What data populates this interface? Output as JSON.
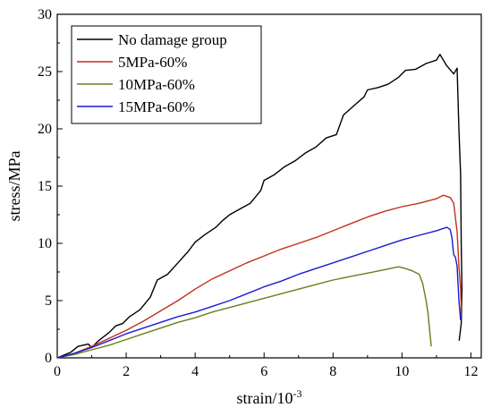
{
  "chart_data": {
    "type": "line",
    "xlabel": "strain/10",
    "xlabel_exponent": "-3",
    "ylabel": "stress/MPa",
    "xlim": [
      0,
      12.3
    ],
    "ylim": [
      0,
      30
    ],
    "x_ticks": [
      0,
      2,
      4,
      6,
      8,
      10,
      12
    ],
    "y_ticks": [
      0,
      5,
      10,
      15,
      20,
      25,
      30
    ],
    "grid": false,
    "legend_position": "top-left",
    "series": [
      {
        "name": "No damage group",
        "color": "#000000",
        "x": [
          0.0,
          0.4,
          0.6,
          0.9,
          1.0,
          1.2,
          1.5,
          1.7,
          1.9,
          2.1,
          2.4,
          2.7,
          2.9,
          3.2,
          3.5,
          3.8,
          4.0,
          4.3,
          4.6,
          4.8,
          5.0,
          5.3,
          5.6,
          5.9,
          6.0,
          6.3,
          6.6,
          6.9,
          7.2,
          7.5,
          7.8,
          8.1,
          8.3,
          8.6,
          8.9,
          9.0,
          9.3,
          9.6,
          9.9,
          10.1,
          10.4,
          10.7,
          11.0,
          11.1,
          11.3,
          11.5,
          11.6,
          11.65,
          11.7,
          11.72,
          11.74,
          11.72,
          11.66
        ],
        "y": [
          0.0,
          0.5,
          1.0,
          1.2,
          0.9,
          1.5,
          2.2,
          2.8,
          3.0,
          3.6,
          4.2,
          5.3,
          6.8,
          7.3,
          8.3,
          9.3,
          10.1,
          10.8,
          11.4,
          12.0,
          12.5,
          13.0,
          13.5,
          14.6,
          15.5,
          16.0,
          16.7,
          17.2,
          17.9,
          18.4,
          19.2,
          19.5,
          21.2,
          22.0,
          22.8,
          23.4,
          23.6,
          23.9,
          24.5,
          25.1,
          25.2,
          25.7,
          26.0,
          26.5,
          25.5,
          24.8,
          25.3,
          20.0,
          16.0,
          10.0,
          6.0,
          3.0,
          1.5
        ]
      },
      {
        "name": "5MPa-60%",
        "color": "#c0311f",
        "x": [
          0.0,
          0.5,
          1.0,
          1.5,
          2.0,
          2.5,
          3.0,
          3.5,
          4.0,
          4.5,
          5.0,
          5.5,
          6.0,
          6.5,
          7.0,
          7.5,
          8.0,
          8.5,
          9.0,
          9.5,
          10.0,
          10.5,
          11.0,
          11.2,
          11.4,
          11.5,
          11.6,
          11.65,
          11.7,
          11.72,
          11.7
        ],
        "y": [
          0.0,
          0.4,
          1.0,
          1.7,
          2.4,
          3.2,
          4.1,
          5.0,
          6.0,
          6.9,
          7.6,
          8.3,
          8.9,
          9.5,
          10.0,
          10.5,
          11.1,
          11.7,
          12.3,
          12.8,
          13.2,
          13.5,
          13.9,
          14.2,
          14.0,
          13.5,
          11.0,
          8.0,
          6.0,
          4.5,
          3.5
        ]
      },
      {
        "name": "10MPa-60%",
        "color": "#6b7d1a",
        "x": [
          0.0,
          0.5,
          1.0,
          1.5,
          2.0,
          2.5,
          3.0,
          3.5,
          4.0,
          4.5,
          5.0,
          5.5,
          6.0,
          6.5,
          7.0,
          7.5,
          8.0,
          8.5,
          9.0,
          9.5,
          9.9,
          10.1,
          10.3,
          10.5,
          10.6,
          10.7,
          10.75,
          10.8,
          10.85
        ],
        "y": [
          0.0,
          0.3,
          0.7,
          1.1,
          1.6,
          2.1,
          2.6,
          3.1,
          3.5,
          4.0,
          4.4,
          4.8,
          5.2,
          5.6,
          6.0,
          6.4,
          6.8,
          7.1,
          7.4,
          7.7,
          7.95,
          7.8,
          7.6,
          7.3,
          6.5,
          5.0,
          4.0,
          2.5,
          1.0
        ]
      },
      {
        "name": "15MPa-60%",
        "color": "#1a1ad6",
        "x": [
          0.0,
          0.5,
          1.0,
          1.5,
          2.0,
          2.5,
          3.0,
          3.5,
          4.0,
          4.5,
          5.0,
          5.5,
          6.0,
          6.5,
          7.0,
          7.5,
          8.0,
          8.5,
          9.0,
          9.5,
          10.0,
          10.5,
          11.0,
          11.3,
          11.4,
          11.45,
          11.5,
          11.55,
          11.6,
          11.65,
          11.7
        ],
        "y": [
          0.0,
          0.4,
          0.9,
          1.5,
          2.1,
          2.6,
          3.1,
          3.6,
          4.0,
          4.5,
          5.0,
          5.6,
          6.2,
          6.7,
          7.3,
          7.8,
          8.3,
          8.8,
          9.3,
          9.8,
          10.3,
          10.7,
          11.1,
          11.4,
          11.2,
          10.5,
          9.0,
          8.8,
          8.0,
          5.0,
          3.3
        ]
      }
    ]
  }
}
